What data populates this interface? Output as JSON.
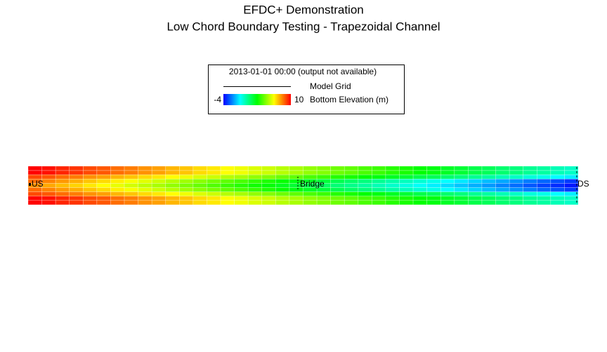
{
  "title": [
    "EFDC+ Demonstration",
    "Low Chord Boundary Testing - Trapezoidal Channel"
  ],
  "legend": {
    "timestamp": "2013-01-01 00:00 (output not available)",
    "grid_label": "Model Grid",
    "colorbar": {
      "min": -4,
      "max": 10,
      "label": "Bottom Elevation (m)",
      "colormap": [
        "#0000ff",
        "#00ffff",
        "#00ff00",
        "#ffff00",
        "#ff0000"
      ]
    }
  },
  "labels": {
    "upstream": "US",
    "bridge": "Bridge",
    "downstream": "DS"
  },
  "grid": {
    "rows": [
      [
        10,
        9.8,
        9.5,
        9.3,
        9,
        8.8,
        8.5,
        8.3,
        8,
        7.8,
        7.5,
        7.3,
        7,
        6.8,
        6.5,
        6.3,
        6,
        5.8,
        5.5,
        5.3,
        5,
        4.8,
        4.5,
        4.3,
        4,
        3.8,
        3.5,
        3.3,
        3,
        2.8,
        2.5,
        2.3,
        2,
        1.8,
        1.5,
        1.3,
        1,
        0.8,
        0.5,
        0.3
      ],
      [
        10,
        9.8,
        9.5,
        9.3,
        9,
        8.8,
        8.5,
        8.3,
        8,
        7.8,
        7.5,
        7.3,
        7,
        6.8,
        6.5,
        6.3,
        6,
        5.8,
        5.5,
        5.3,
        5,
        4.8,
        4.5,
        4.3,
        4,
        3.8,
        3.5,
        3.3,
        3,
        2.8,
        2.5,
        2.3,
        2,
        1.8,
        1.5,
        1.3,
        1,
        0.8,
        0.5,
        0.3
      ],
      [
        9,
        8.8,
        8.5,
        8.3,
        8,
        7.8,
        7.5,
        7.3,
        7,
        6.8,
        6.5,
        6.3,
        6,
        5.8,
        5.5,
        5.3,
        5,
        4.8,
        4.5,
        4.3,
        4,
        3.8,
        3.5,
        3.3,
        3,
        2.8,
        2.5,
        2.3,
        2,
        1.8,
        1.5,
        1.3,
        1,
        0.8,
        0.5,
        0.3,
        0,
        -0.2,
        -0.5,
        -0.7
      ],
      [
        8.5,
        8.2,
        7.9,
        7.6,
        7.3,
        7,
        6.7,
        6.4,
        6.1,
        5.8,
        5.5,
        5.2,
        4.9,
        4.6,
        4.3,
        4,
        3.7,
        3.4,
        3.1,
        2.8,
        2.5,
        2.2,
        1.9,
        1.6,
        1.3,
        1,
        0.7,
        0.4,
        0.1,
        -0.2,
        -0.5,
        -0.8,
        -1.1,
        -1.4,
        -1.7,
        -2,
        -2.3,
        -2.6,
        -2.9,
        -3.2
      ],
      [
        8,
        7.7,
        7.4,
        7.1,
        6.8,
        6.5,
        6.2,
        5.9,
        5.6,
        5.3,
        5,
        4.7,
        4.4,
        4.1,
        3.8,
        3.5,
        3.2,
        2.9,
        2.6,
        2.3,
        2,
        1.7,
        1.4,
        1.1,
        0.8,
        0.5,
        0.2,
        -0.1,
        -0.4,
        -0.7,
        -1,
        -1.3,
        -1.6,
        -1.9,
        -2.2,
        -2.5,
        -2.8,
        -3.1,
        -3.4,
        -3.7
      ],
      [
        8.5,
        8.2,
        7.9,
        7.6,
        7.3,
        7,
        6.7,
        6.4,
        6.1,
        5.8,
        5.5,
        5.2,
        4.9,
        4.6,
        4.3,
        4,
        3.7,
        3.4,
        3.1,
        2.8,
        2.5,
        2.2,
        1.9,
        1.6,
        1.3,
        1,
        0.7,
        0.4,
        0.1,
        -0.2,
        -0.5,
        -0.8,
        -1.1,
        -1.4,
        -1.7,
        -2,
        -2.3,
        -2.6,
        -2.9,
        -3.2
      ],
      [
        9,
        8.8,
        8.5,
        8.3,
        8,
        7.8,
        7.5,
        7.3,
        7,
        6.8,
        6.5,
        6.3,
        6,
        5.8,
        5.5,
        5.3,
        5,
        4.8,
        4.5,
        4.3,
        4,
        3.8,
        3.5,
        3.3,
        3,
        2.8,
        2.5,
        2.3,
        2,
        1.8,
        1.5,
        1.3,
        1,
        0.8,
        0.5,
        0.3,
        0,
        -0.2,
        -0.5,
        -0.7
      ],
      [
        10,
        9.8,
        9.5,
        9.3,
        9,
        8.8,
        8.5,
        8.3,
        8,
        7.8,
        7.5,
        7.3,
        7,
        6.8,
        6.5,
        6.3,
        6,
        5.8,
        5.5,
        5.3,
        5,
        4.8,
        4.5,
        4.3,
        4,
        3.8,
        3.5,
        3.3,
        3,
        2.8,
        2.5,
        2.3,
        2,
        1.8,
        1.5,
        1.3,
        1,
        0.8,
        0.5,
        0.3
      ],
      [
        10,
        9.8,
        9.5,
        9.3,
        9,
        8.8,
        8.5,
        8.3,
        8,
        7.8,
        7.5,
        7.3,
        7,
        6.8,
        6.5,
        6.3,
        6,
        5.8,
        5.5,
        5.3,
        5,
        4.8,
        4.5,
        4.3,
        4,
        3.8,
        3.5,
        3.3,
        3,
        2.8,
        2.5,
        2.3,
        2,
        1.8,
        1.5,
        1.3,
        1,
        0.8,
        0.5,
        0.3
      ]
    ]
  }
}
